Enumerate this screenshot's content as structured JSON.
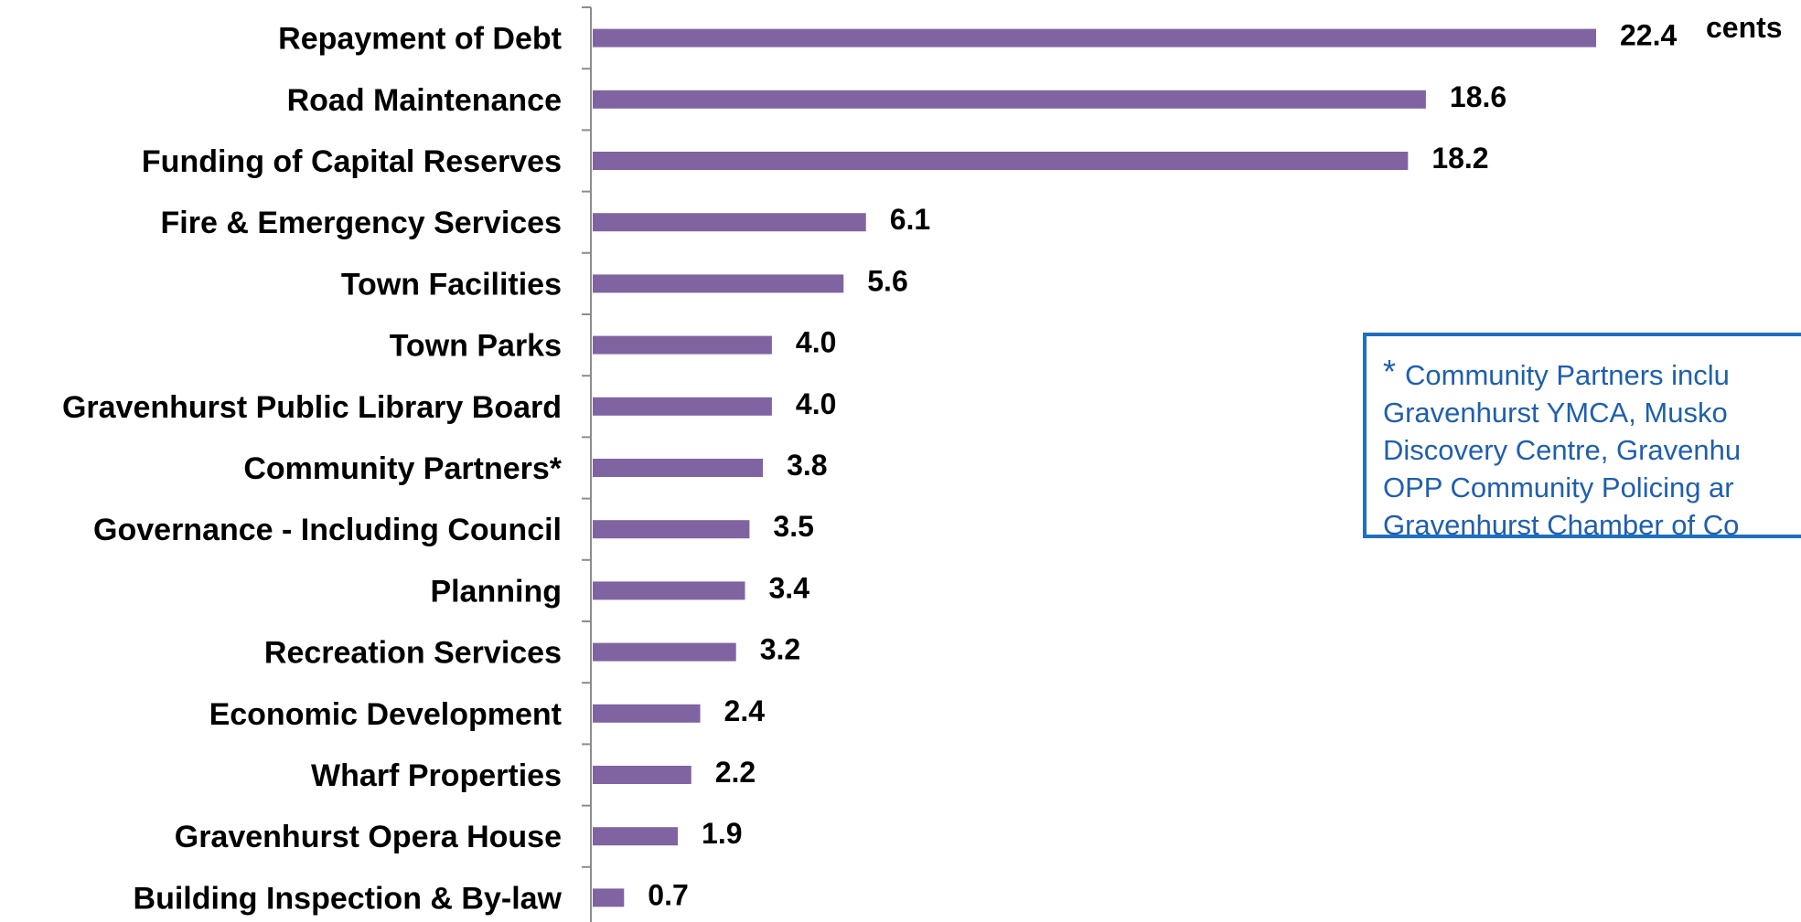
{
  "chart_data": {
    "type": "bar",
    "orientation": "horizontal",
    "categories": [
      "Repayment of Debt",
      "Road Maintenance",
      "Funding of Capital Reserves",
      "Fire & Emergency Services",
      "Town Facilities",
      "Town Parks",
      "Gravenhurst Public Library Board",
      "Community Partners*",
      "Governance - Including Council",
      "Planning",
      "Recreation Services",
      "Economic Development",
      "Wharf Properties",
      "Gravenhurst Opera House",
      "Building Inspection & By-law"
    ],
    "values": [
      22.4,
      18.6,
      18.2,
      6.1,
      5.6,
      4.0,
      4.0,
      3.8,
      3.5,
      3.4,
      3.2,
      2.4,
      2.2,
      1.9,
      0.7
    ],
    "value_labels": [
      "22.4",
      "18.6",
      "18.2",
      "6.1",
      "5.6",
      "4.0",
      "4.0",
      "3.8",
      "3.5",
      "3.4",
      "3.2",
      "2.4",
      "2.2",
      "1.9",
      "0.7"
    ],
    "unit_label": "cents",
    "title": "",
    "xlabel": "",
    "ylabel": "",
    "xlim": [
      0,
      22.4
    ],
    "grid": false,
    "bar_color": "#8064a2"
  },
  "note": {
    "star": "*",
    "lines": [
      "Community Partners inclu",
      "Gravenhurst YMCA, Musko",
      "Discovery Centre, Gravenhu",
      "OPP Community Policing ar",
      "Gravenhurst Chamber of Co"
    ],
    "border_color": "#1f6fc1",
    "text_color": "#1f5fae"
  }
}
